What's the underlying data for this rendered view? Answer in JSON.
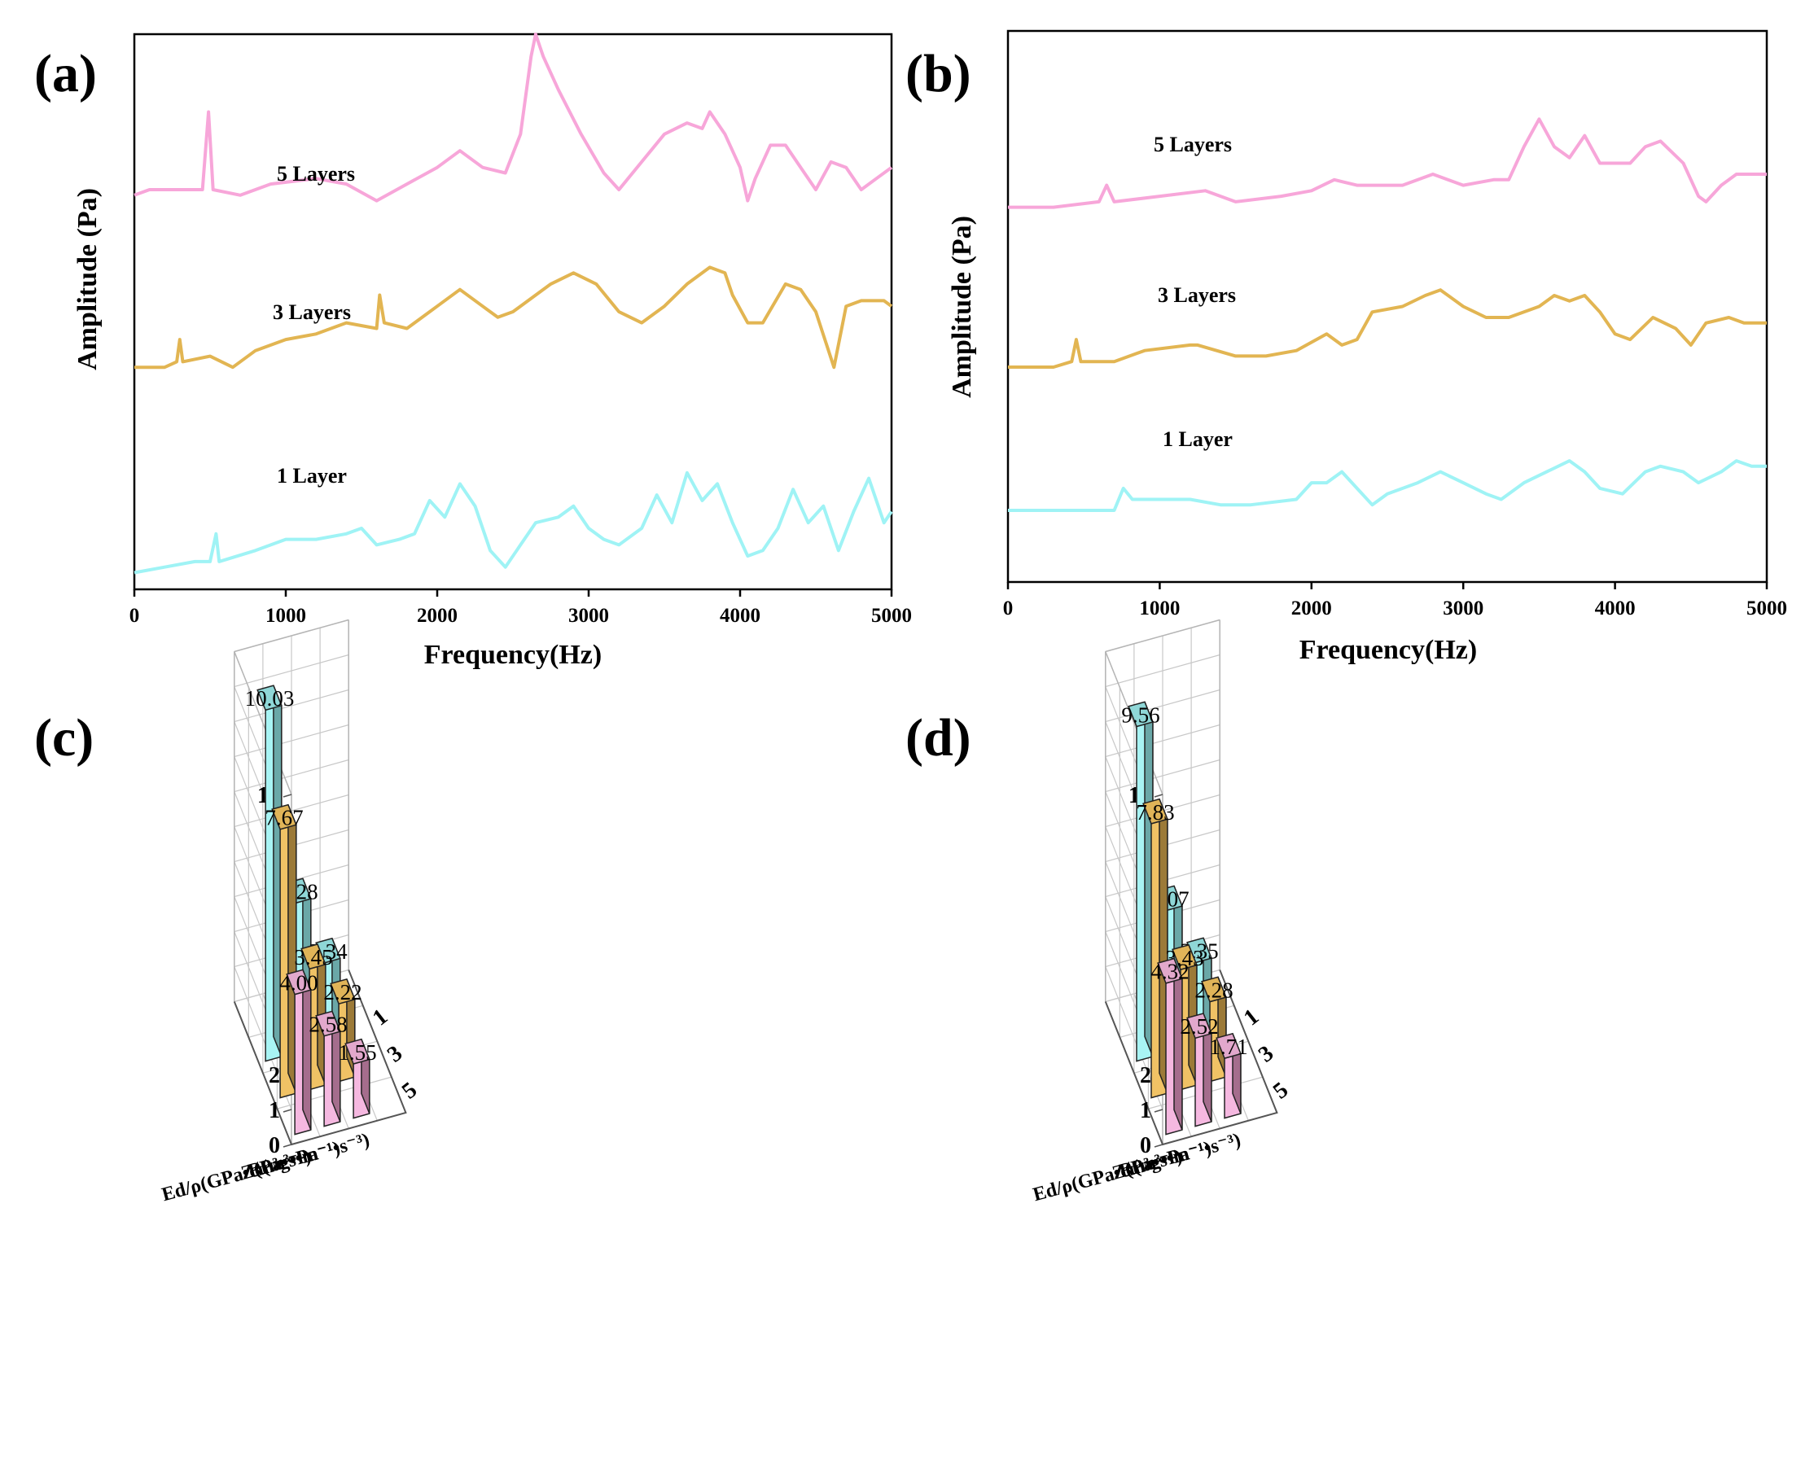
{
  "colors": {
    "5": {
      "front": "#f5b8e0",
      "side": "#a56d8d",
      "top": "#e2a8cc"
    },
    "3": {
      "front": "#f0c265",
      "side": "#9c7a38",
      "top": "#e0b458"
    },
    "1": {
      "front": "#a8f4f4",
      "side": "#6aa8a8",
      "top": "#8fd7d7"
    },
    "line_5": "#f7a6d9",
    "line_3": "#e2b552",
    "line_1": "#9ff3f5"
  },
  "panels": {
    "a": {
      "label": "(a)"
    },
    "b": {
      "label": "(b)"
    },
    "c": {
      "label": "(c)"
    },
    "d": {
      "label": "(d)"
    }
  },
  "chart_data": [
    {
      "panel": "(a)",
      "type": "line",
      "xlabel": "Frequency(Hz)",
      "ylabel": "Amplitude (Pa)",
      "xlim": [
        0,
        5000
      ],
      "xticks": [
        "0",
        "1000",
        "2000",
        "3000",
        "4000",
        "5000"
      ],
      "y_ticks_shown": false,
      "series": [
        {
          "name": "5 Layers",
          "color_key": "line_5",
          "points": [
            [
              0,
              0.71
            ],
            [
              100,
              0.72
            ],
            [
              200,
              0.72
            ],
            [
              350,
              0.72
            ],
            [
              450,
              0.72
            ],
            [
              490,
              0.86
            ],
            [
              520,
              0.72
            ],
            [
              700,
              0.71
            ],
            [
              900,
              0.73
            ],
            [
              1200,
              0.74
            ],
            [
              1400,
              0.73
            ],
            [
              1600,
              0.7
            ],
            [
              1800,
              0.73
            ],
            [
              2000,
              0.76
            ],
            [
              2150,
              0.79
            ],
            [
              2300,
              0.76
            ],
            [
              2450,
              0.75
            ],
            [
              2550,
              0.82
            ],
            [
              2620,
              0.96
            ],
            [
              2650,
              1.0
            ],
            [
              2700,
              0.96
            ],
            [
              2800,
              0.9
            ],
            [
              2950,
              0.82
            ],
            [
              3100,
              0.75
            ],
            [
              3200,
              0.72
            ],
            [
              3350,
              0.77
            ],
            [
              3500,
              0.82
            ],
            [
              3650,
              0.84
            ],
            [
              3750,
              0.83
            ],
            [
              3800,
              0.86
            ],
            [
              3900,
              0.82
            ],
            [
              4000,
              0.76
            ],
            [
              4050,
              0.7
            ],
            [
              4100,
              0.74
            ],
            [
              4200,
              0.8
            ],
            [
              4300,
              0.8
            ],
            [
              4400,
              0.76
            ],
            [
              4500,
              0.72
            ],
            [
              4600,
              0.77
            ],
            [
              4700,
              0.76
            ],
            [
              4800,
              0.72
            ],
            [
              4900,
              0.74
            ],
            [
              5000,
              0.76
            ]
          ]
        },
        {
          "name": "3 Layers",
          "color_key": "line_3",
          "points": [
            [
              0,
              0.4
            ],
            [
              200,
              0.4
            ],
            [
              280,
              0.41
            ],
            [
              300,
              0.45
            ],
            [
              320,
              0.41
            ],
            [
              500,
              0.42
            ],
            [
              650,
              0.4
            ],
            [
              800,
              0.43
            ],
            [
              1000,
              0.45
            ],
            [
              1200,
              0.46
            ],
            [
              1400,
              0.48
            ],
            [
              1600,
              0.47
            ],
            [
              1620,
              0.53
            ],
            [
              1650,
              0.48
            ],
            [
              1800,
              0.47
            ],
            [
              2000,
              0.51
            ],
            [
              2150,
              0.54
            ],
            [
              2300,
              0.51
            ],
            [
              2400,
              0.49
            ],
            [
              2500,
              0.5
            ],
            [
              2600,
              0.52
            ],
            [
              2750,
              0.55
            ],
            [
              2900,
              0.57
            ],
            [
              3050,
              0.55
            ],
            [
              3200,
              0.5
            ],
            [
              3350,
              0.48
            ],
            [
              3500,
              0.51
            ],
            [
              3650,
              0.55
            ],
            [
              3800,
              0.58
            ],
            [
              3900,
              0.57
            ],
            [
              3950,
              0.53
            ],
            [
              4050,
              0.48
            ],
            [
              4150,
              0.48
            ],
            [
              4300,
              0.55
            ],
            [
              4400,
              0.54
            ],
            [
              4500,
              0.5
            ],
            [
              4620,
              0.4
            ],
            [
              4700,
              0.51
            ],
            [
              4800,
              0.52
            ],
            [
              4950,
              0.52
            ],
            [
              5000,
              0.51
            ]
          ]
        },
        {
          "name": "1 Layer",
          "color_key": "line_1",
          "points": [
            [
              0,
              0.03
            ],
            [
              200,
              0.04
            ],
            [
              400,
              0.05
            ],
            [
              500,
              0.05
            ],
            [
              540,
              0.1
            ],
            [
              560,
              0.05
            ],
            [
              800,
              0.07
            ],
            [
              1000,
              0.09
            ],
            [
              1200,
              0.09
            ],
            [
              1400,
              0.1
            ],
            [
              1500,
              0.11
            ],
            [
              1600,
              0.08
            ],
            [
              1750,
              0.09
            ],
            [
              1850,
              0.1
            ],
            [
              1950,
              0.16
            ],
            [
              2050,
              0.13
            ],
            [
              2150,
              0.19
            ],
            [
              2250,
              0.15
            ],
            [
              2350,
              0.07
            ],
            [
              2450,
              0.04
            ],
            [
              2550,
              0.08
            ],
            [
              2650,
              0.12
            ],
            [
              2800,
              0.13
            ],
            [
              2900,
              0.15
            ],
            [
              3000,
              0.11
            ],
            [
              3100,
              0.09
            ],
            [
              3200,
              0.08
            ],
            [
              3350,
              0.11
            ],
            [
              3450,
              0.17
            ],
            [
              3550,
              0.12
            ],
            [
              3650,
              0.21
            ],
            [
              3750,
              0.16
            ],
            [
              3850,
              0.19
            ],
            [
              3950,
              0.12
            ],
            [
              4050,
              0.06
            ],
            [
              4150,
              0.07
            ],
            [
              4250,
              0.11
            ],
            [
              4350,
              0.18
            ],
            [
              4450,
              0.12
            ],
            [
              4550,
              0.15
            ],
            [
              4650,
              0.07
            ],
            [
              4750,
              0.14
            ],
            [
              4850,
              0.2
            ],
            [
              4950,
              0.12
            ],
            [
              5000,
              0.14
            ]
          ]
        }
      ]
    },
    {
      "panel": "(b)",
      "type": "line",
      "xlabel": "Frequency(Hz)",
      "ylabel": "Amplitude (Pa)",
      "xlim": [
        0,
        5000
      ],
      "xticks": [
        "0",
        "1000",
        "2000",
        "3000",
        "4000",
        "5000"
      ],
      "y_ticks_shown": false,
      "series": [
        {
          "name": "5 Layers",
          "color_key": "line_5",
          "points": [
            [
              0,
              0.68
            ],
            [
              300,
              0.68
            ],
            [
              600,
              0.69
            ],
            [
              650,
              0.72
            ],
            [
              700,
              0.69
            ],
            [
              1000,
              0.7
            ],
            [
              1300,
              0.71
            ],
            [
              1500,
              0.69
            ],
            [
              1800,
              0.7
            ],
            [
              2000,
              0.71
            ],
            [
              2150,
              0.73
            ],
            [
              2300,
              0.72
            ],
            [
              2600,
              0.72
            ],
            [
              2800,
              0.74
            ],
            [
              3000,
              0.72
            ],
            [
              3200,
              0.73
            ],
            [
              3300,
              0.73
            ],
            [
              3400,
              0.79
            ],
            [
              3500,
              0.84
            ],
            [
              3600,
              0.79
            ],
            [
              3700,
              0.77
            ],
            [
              3800,
              0.81
            ],
            [
              3900,
              0.76
            ],
            [
              4000,
              0.76
            ],
            [
              4100,
              0.76
            ],
            [
              4200,
              0.79
            ],
            [
              4300,
              0.8
            ],
            [
              4450,
              0.76
            ],
            [
              4550,
              0.7
            ],
            [
              4600,
              0.69
            ],
            [
              4700,
              0.72
            ],
            [
              4800,
              0.74
            ],
            [
              5000,
              0.74
            ]
          ]
        },
        {
          "name": "3 Layers",
          "color_key": "line_3",
          "points": [
            [
              0,
              0.39
            ],
            [
              300,
              0.39
            ],
            [
              420,
              0.4
            ],
            [
              450,
              0.44
            ],
            [
              480,
              0.4
            ],
            [
              700,
              0.4
            ],
            [
              900,
              0.42
            ],
            [
              1200,
              0.43
            ],
            [
              1250,
              0.43
            ],
            [
              1500,
              0.41
            ],
            [
              1700,
              0.41
            ],
            [
              1900,
              0.42
            ],
            [
              2100,
              0.45
            ],
            [
              2200,
              0.43
            ],
            [
              2300,
              0.44
            ],
            [
              2400,
              0.49
            ],
            [
              2600,
              0.5
            ],
            [
              2750,
              0.52
            ],
            [
              2850,
              0.53
            ],
            [
              3000,
              0.5
            ],
            [
              3150,
              0.48
            ],
            [
              3300,
              0.48
            ],
            [
              3500,
              0.5
            ],
            [
              3600,
              0.52
            ],
            [
              3700,
              0.51
            ],
            [
              3800,
              0.52
            ],
            [
              3900,
              0.49
            ],
            [
              4000,
              0.45
            ],
            [
              4100,
              0.44
            ],
            [
              4250,
              0.48
            ],
            [
              4400,
              0.46
            ],
            [
              4500,
              0.43
            ],
            [
              4600,
              0.47
            ],
            [
              4750,
              0.48
            ],
            [
              4850,
              0.47
            ],
            [
              5000,
              0.47
            ]
          ]
        },
        {
          "name": "1 Layer",
          "color_key": "line_1",
          "points": [
            [
              0,
              0.13
            ],
            [
              300,
              0.13
            ],
            [
              500,
              0.13
            ],
            [
              700,
              0.13
            ],
            [
              760,
              0.17
            ],
            [
              820,
              0.15
            ],
            [
              1000,
              0.15
            ],
            [
              1200,
              0.15
            ],
            [
              1400,
              0.14
            ],
            [
              1600,
              0.14
            ],
            [
              1900,
              0.15
            ],
            [
              2000,
              0.18
            ],
            [
              2100,
              0.18
            ],
            [
              2200,
              0.2
            ],
            [
              2300,
              0.17
            ],
            [
              2400,
              0.14
            ],
            [
              2500,
              0.16
            ],
            [
              2700,
              0.18
            ],
            [
              2850,
              0.2
            ],
            [
              3000,
              0.18
            ],
            [
              3150,
              0.16
            ],
            [
              3250,
              0.15
            ],
            [
              3400,
              0.18
            ],
            [
              3550,
              0.2
            ],
            [
              3700,
              0.22
            ],
            [
              3800,
              0.2
            ],
            [
              3900,
              0.17
            ],
            [
              4050,
              0.16
            ],
            [
              4200,
              0.2
            ],
            [
              4300,
              0.21
            ],
            [
              4450,
              0.2
            ],
            [
              4550,
              0.18
            ],
            [
              4700,
              0.2
            ],
            [
              4800,
              0.22
            ],
            [
              4900,
              0.21
            ],
            [
              5000,
              0.21
            ]
          ]
        }
      ]
    },
    {
      "panel": "(c)",
      "type": "bar3d",
      "zlim": [
        0,
        10
      ],
      "zticks": [
        "0",
        "1",
        "2",
        "3",
        "4",
        "5",
        "6",
        "7",
        "8",
        "9",
        "10"
      ],
      "layers": [
        "5",
        "3",
        "1"
      ],
      "rows": [
        "Ed/ρ(GPa•cm³g⁻¹)",
        "Z(Pa•s•m⁻¹)",
        "R(m³•Pa⁻¹•s⁻³)"
      ],
      "values": {
        "Ed": {
          "5": 4.0,
          "3": 7.67,
          "1": 10.03
        },
        "Z": {
          "5": 2.58,
          "3": 3.45,
          "1": 4.28
        },
        "R": {
          "5": 1.55,
          "3": 2.22,
          "1": 2.34
        }
      },
      "labels": {
        "Ed": {
          "5": "4.00",
          "3": "7.67",
          "1": "10.03"
        },
        "Z": {
          "5": "2.58",
          "3": "3.45",
          "1": "4.28"
        },
        "R": {
          "5": "1.55",
          "3": "2.22",
          "1": "2.34"
        }
      }
    },
    {
      "panel": "(d)",
      "type": "bar3d",
      "zlim": [
        0,
        10
      ],
      "zticks": [
        "0",
        "1",
        "2",
        "3",
        "4",
        "5",
        "6",
        "7",
        "8",
        "9",
        "10"
      ],
      "layers": [
        "5",
        "3",
        "1"
      ],
      "rows": [
        "Ed/ρ(GPa•cm³g⁻¹)",
        "Z(Pa•s•m⁻¹)",
        "R(m³•Pa⁻¹•s⁻³)"
      ],
      "values": {
        "Ed": {
          "5": 4.32,
          "3": 7.83,
          "1": 9.56
        },
        "Z": {
          "5": 2.52,
          "3": 3.43,
          "1": 4.07
        },
        "R": {
          "5": 1.71,
          "3": 2.28,
          "1": 2.35
        }
      },
      "labels": {
        "Ed": {
          "5": "4.32",
          "3": "7.83",
          "1": "9.56"
        },
        "Z": {
          "5": "2.52",
          "3": "3.43",
          "1": "4.07"
        },
        "R": {
          "5": "1.71",
          "3": "2.28",
          "1": "2.35"
        }
      }
    }
  ]
}
